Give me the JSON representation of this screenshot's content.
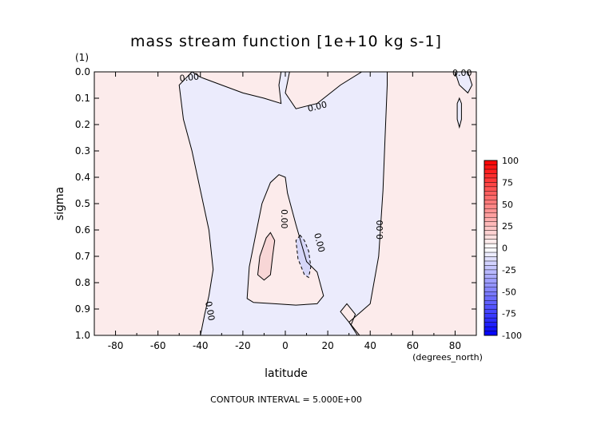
{
  "chart_data": {
    "type": "contour",
    "title": "mass stream function [1e+10 kg s-1]",
    "xlabel": "latitude",
    "ylabel": "sigma",
    "x_unit": "(degrees_north)",
    "y_unit": "(1)",
    "footer": "CONTOUR INTERVAL = 5.000E+00",
    "xlim": [
      -90,
      90
    ],
    "ylim": [
      1.0,
      0.0
    ],
    "x_ticks": [
      -80,
      -60,
      -40,
      -20,
      0,
      20,
      40,
      60,
      80
    ],
    "x_tick_labels": [
      "-80",
      "-60",
      "-40",
      "-20",
      "0",
      "20",
      "40",
      "60",
      "80"
    ],
    "y_ticks": [
      0.0,
      0.1,
      0.2,
      0.3,
      0.4,
      0.5,
      0.6,
      0.7,
      0.8,
      0.9,
      1.0
    ],
    "y_tick_labels": [
      "0.0",
      "0.1",
      "0.2",
      "0.3",
      "0.4",
      "0.5",
      "0.6",
      "0.7",
      "0.8",
      "0.9",
      "1.0"
    ],
    "colorbar": {
      "min": -100,
      "max": 100,
      "levels": [
        -100,
        -95,
        -90,
        -85,
        -80,
        -75,
        -70,
        -65,
        -60,
        -55,
        -50,
        -45,
        -40,
        -35,
        -30,
        -25,
        -20,
        -15,
        -10,
        -5,
        0,
        5,
        10,
        15,
        20,
        25,
        30,
        35,
        40,
        45,
        50,
        55,
        60,
        65,
        70,
        75,
        80,
        85,
        90,
        95,
        100
      ],
      "tick_values": [
        100,
        75,
        50,
        25,
        0,
        -25,
        -50,
        -75,
        -100
      ],
      "tick_labels": [
        "100",
        "75",
        "50",
        "25",
        "0",
        "-25",
        "-50",
        "-75",
        "-100"
      ],
      "negative_color": "#0000ff",
      "zero_color": "#ffffff",
      "positive_color": "#ff0000"
    },
    "colors": {
      "positive_fill": "#fcebeb",
      "negative_fill": "#ebebfc",
      "pos_level_fill": "#f8d6d6",
      "neg_level_fill": "#d6d6f8",
      "contour_line": "#000000"
    },
    "contour_labels": [
      "0.00",
      "0.00",
      "0.00",
      "0.00",
      "0.00",
      "0.00",
      "0.00"
    ],
    "regions": [
      {
        "name": "southern-negative-cell",
        "sign": "negative",
        "points": [
          [
            -44,
            0.0
          ],
          [
            -50,
            0.05
          ],
          [
            -48,
            0.18
          ],
          [
            -44,
            0.3
          ],
          [
            -40,
            0.45
          ],
          [
            -36,
            0.6
          ],
          [
            -34,
            0.75
          ],
          [
            -36,
            0.85
          ],
          [
            -38,
            0.92
          ],
          [
            -40,
            1.0
          ],
          [
            34,
            1.0
          ],
          [
            30,
            0.95
          ],
          [
            40,
            0.88
          ],
          [
            44,
            0.7
          ],
          [
            46,
            0.45
          ],
          [
            47,
            0.25
          ],
          [
            48,
            0.05
          ],
          [
            48,
            0.0
          ],
          [
            36,
            0.0
          ],
          [
            26,
            0.05
          ],
          [
            15,
            0.12
          ],
          [
            5,
            0.14
          ],
          [
            0,
            0.08
          ],
          [
            2,
            0.0
          ],
          [
            -2,
            0.0
          ],
          [
            -3,
            0.05
          ],
          [
            -2,
            0.12
          ],
          [
            -10,
            0.1
          ],
          [
            -20,
            0.08
          ],
          [
            -30,
            0.05
          ],
          [
            -40,
            0.02
          ]
        ]
      },
      {
        "name": "equatorial-positive-core",
        "sign": "positive",
        "points": [
          [
            -3,
            0.39
          ],
          [
            -7,
            0.42
          ],
          [
            -11,
            0.5
          ],
          [
            -14,
            0.62
          ],
          [
            -17,
            0.74
          ],
          [
            -18,
            0.86
          ],
          [
            -15,
            0.875
          ],
          [
            -5,
            0.88
          ],
          [
            5,
            0.885
          ],
          [
            15,
            0.88
          ],
          [
            18,
            0.85
          ],
          [
            15,
            0.76
          ],
          [
            10,
            0.72
          ],
          [
            5,
            0.58
          ],
          [
            1,
            0.46
          ],
          [
            0,
            0.4
          ]
        ]
      },
      {
        "name": "nh-low-level-positive",
        "sign": "positive",
        "points": [
          [
            35,
            1.0
          ],
          [
            31,
            0.96
          ],
          [
            33,
            0.92
          ],
          [
            29,
            0.88
          ],
          [
            26,
            0.91
          ],
          [
            32,
            0.97
          ]
        ]
      },
      {
        "name": "upper-negative-patch",
        "sign": "negative",
        "points": [
          [
            80,
            0.0
          ],
          [
            86,
            0.0
          ],
          [
            88,
            0.05
          ],
          [
            86,
            0.08
          ],
          [
            82,
            0.05
          ]
        ]
      },
      {
        "name": "high-lat-thin-negative",
        "sign": "negative",
        "points": [
          [
            82,
            0.1
          ],
          [
            83,
            0.12
          ],
          [
            83,
            0.18
          ],
          [
            82,
            0.21
          ],
          [
            81,
            0.18
          ],
          [
            81,
            0.12
          ]
        ]
      },
      {
        "name": "positive-level-cell",
        "sign": "positive-level",
        "points": [
          [
            -7,
            0.61
          ],
          [
            -9,
            0.63
          ],
          [
            -12,
            0.7
          ],
          [
            -13,
            0.77
          ],
          [
            -10,
            0.79
          ],
          [
            -7,
            0.77
          ],
          [
            -6,
            0.7
          ],
          [
            -5,
            0.64
          ]
        ]
      },
      {
        "name": "negative-level-cell",
        "sign": "negative-level",
        "points": [
          [
            7,
            0.62
          ],
          [
            5,
            0.64
          ],
          [
            6,
            0.71
          ],
          [
            9,
            0.77
          ],
          [
            11,
            0.78
          ],
          [
            12,
            0.74
          ],
          [
            11,
            0.68
          ],
          [
            9,
            0.64
          ]
        ]
      }
    ]
  }
}
